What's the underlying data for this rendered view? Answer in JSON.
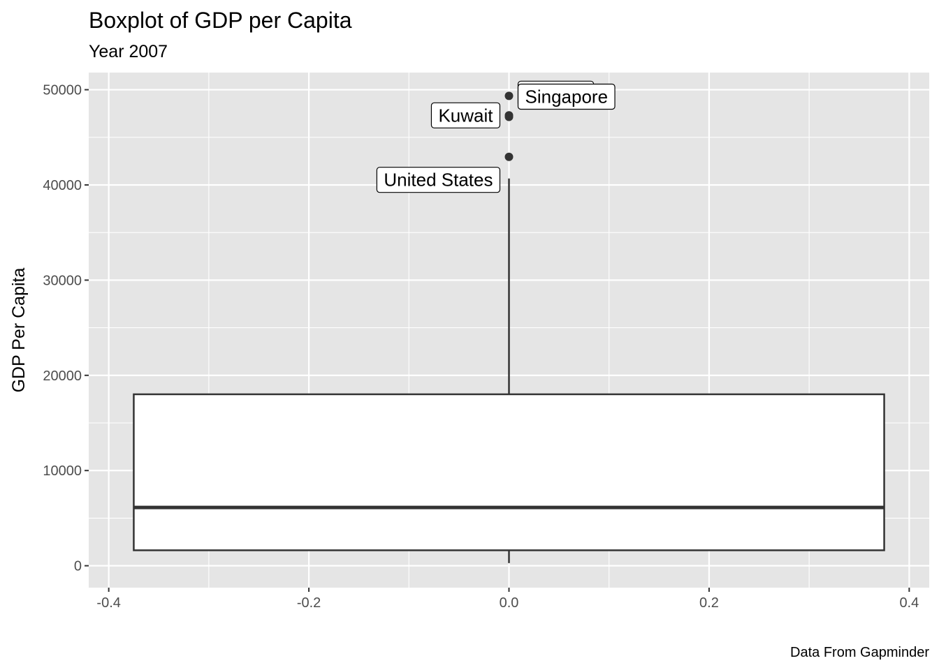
{
  "chart_data": {
    "type": "boxplot",
    "title": "Boxplot of GDP per Capita",
    "subtitle": "Year 2007",
    "caption": "Data From Gapminder",
    "xlabel": "",
    "ylabel": "GDP Per Capita",
    "xlim": [
      -0.42,
      0.42
    ],
    "ylim": [
      -2300,
      51800
    ],
    "x_ticks": [
      -0.4,
      -0.2,
      0.0,
      0.2,
      0.4
    ],
    "x_tick_labels": [
      "-0.4",
      "-0.2",
      "0.0",
      "0.2",
      "0.4"
    ],
    "y_ticks": [
      0,
      10000,
      20000,
      30000,
      40000,
      50000
    ],
    "y_tick_labels": [
      "0",
      "10000",
      "20000",
      "30000",
      "40000",
      "50000"
    ],
    "box": {
      "x_min": -0.375,
      "x_max": 0.375,
      "x_center": 0.0,
      "whisker_low": 277,
      "q1": 1625,
      "median": 6124,
      "q3": 18009,
      "whisker_high": 40676
    },
    "outliers": [
      {
        "label": "Norway",
        "x": 0.0,
        "y": 49357,
        "side": "right"
      },
      {
        "label": "Kuwait",
        "x": 0.0,
        "y": 47307,
        "side": "left"
      },
      {
        "label": "Singapore",
        "x": 0.0,
        "y": 47143,
        "side": "right"
      },
      {
        "label": "United States",
        "x": 0.0,
        "y": 42952,
        "side": "left"
      }
    ],
    "grid": true,
    "legend": "none",
    "colors": {
      "panel_background": "#e5e5e5",
      "grid": "#ffffff",
      "box_fill": "#ffffff",
      "box_line": "#333333",
      "label_fill": "#ffffff"
    }
  }
}
